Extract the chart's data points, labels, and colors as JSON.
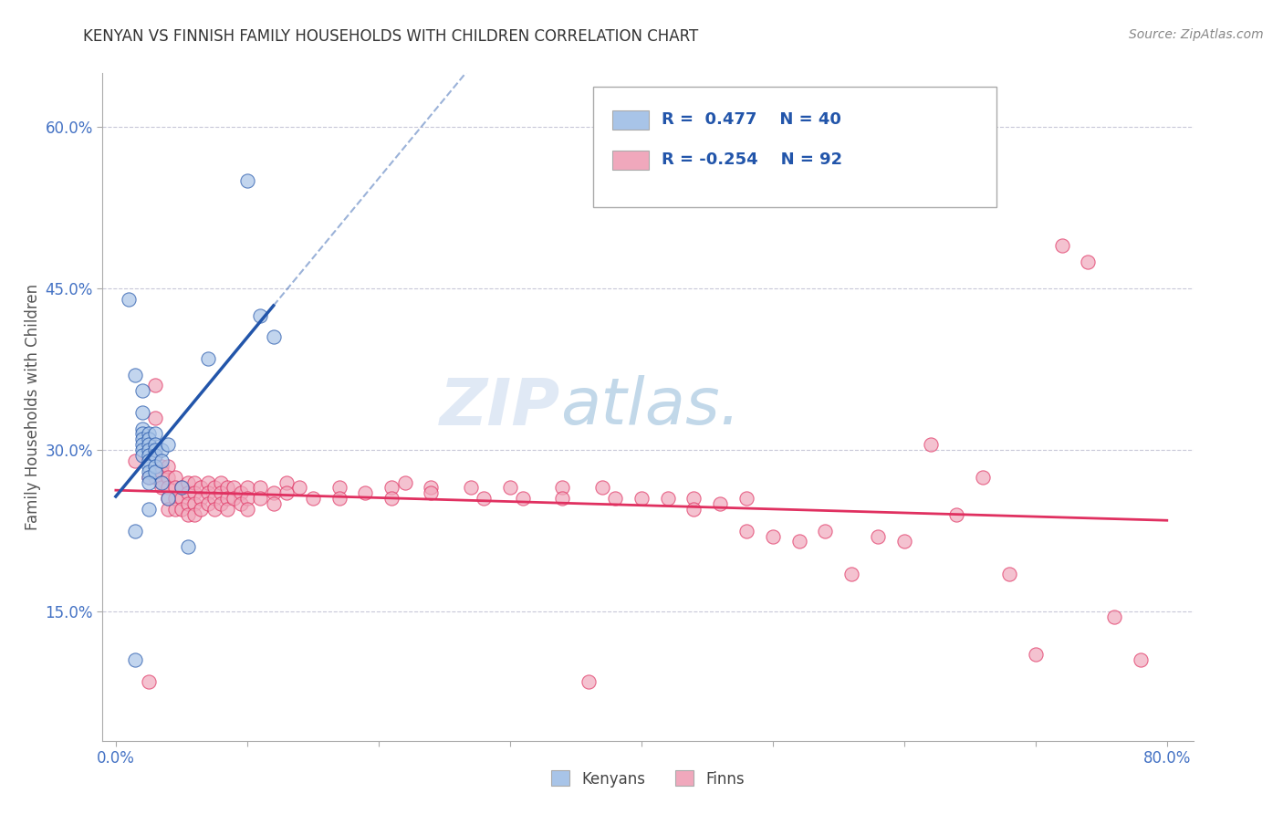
{
  "title": "KENYAN VS FINNISH FAMILY HOUSEHOLDS WITH CHILDREN CORRELATION CHART",
  "source": "Source: ZipAtlas.com",
  "xlabel": "",
  "ylabel": "Family Households with Children",
  "xlim": [
    -0.01,
    0.82
  ],
  "ylim": [
    0.03,
    0.65
  ],
  "yticks": [
    0.15,
    0.3,
    0.45,
    0.6
  ],
  "ytick_labels": [
    "15.0%",
    "30.0%",
    "45.0%",
    "60.0%"
  ],
  "xticks": [
    0.0,
    0.1,
    0.2,
    0.3,
    0.4,
    0.5,
    0.6,
    0.7,
    0.8
  ],
  "xtick_labels": [
    "0.0%",
    "",
    "",
    "",
    "",
    "",
    "",
    "",
    "80.0%"
  ],
  "kenyan_color": "#a8c4e8",
  "finn_color": "#f0a8bc",
  "kenyan_line_color": "#2255aa",
  "finn_line_color": "#e03060",
  "watermark_color": "#d0e0f0",
  "kenyan_points": [
    [
      0.01,
      0.44
    ],
    [
      0.015,
      0.37
    ],
    [
      0.02,
      0.355
    ],
    [
      0.02,
      0.335
    ],
    [
      0.02,
      0.32
    ],
    [
      0.02,
      0.315
    ],
    [
      0.02,
      0.31
    ],
    [
      0.02,
      0.305
    ],
    [
      0.02,
      0.3
    ],
    [
      0.02,
      0.295
    ],
    [
      0.025,
      0.315
    ],
    [
      0.025,
      0.31
    ],
    [
      0.025,
      0.305
    ],
    [
      0.025,
      0.3
    ],
    [
      0.025,
      0.295
    ],
    [
      0.025,
      0.29
    ],
    [
      0.025,
      0.285
    ],
    [
      0.025,
      0.28
    ],
    [
      0.025,
      0.275
    ],
    [
      0.03,
      0.315
    ],
    [
      0.03,
      0.305
    ],
    [
      0.03,
      0.3
    ],
    [
      0.03,
      0.295
    ],
    [
      0.03,
      0.285
    ],
    [
      0.03,
      0.28
    ],
    [
      0.035,
      0.3
    ],
    [
      0.035,
      0.29
    ],
    [
      0.035,
      0.27
    ],
    [
      0.04,
      0.305
    ],
    [
      0.04,
      0.255
    ],
    [
      0.05,
      0.265
    ],
    [
      0.055,
      0.21
    ],
    [
      0.07,
      0.385
    ],
    [
      0.1,
      0.55
    ],
    [
      0.11,
      0.425
    ],
    [
      0.12,
      0.405
    ],
    [
      0.015,
      0.225
    ],
    [
      0.015,
      0.105
    ],
    [
      0.025,
      0.245
    ],
    [
      0.025,
      0.27
    ]
  ],
  "finn_points": [
    [
      0.015,
      0.29
    ],
    [
      0.025,
      0.275
    ],
    [
      0.03,
      0.36
    ],
    [
      0.03,
      0.33
    ],
    [
      0.03,
      0.295
    ],
    [
      0.03,
      0.275
    ],
    [
      0.035,
      0.285
    ],
    [
      0.035,
      0.28
    ],
    [
      0.035,
      0.27
    ],
    [
      0.035,
      0.265
    ],
    [
      0.04,
      0.285
    ],
    [
      0.04,
      0.275
    ],
    [
      0.04,
      0.265
    ],
    [
      0.04,
      0.255
    ],
    [
      0.04,
      0.245
    ],
    [
      0.045,
      0.275
    ],
    [
      0.045,
      0.265
    ],
    [
      0.045,
      0.255
    ],
    [
      0.045,
      0.245
    ],
    [
      0.05,
      0.265
    ],
    [
      0.05,
      0.255
    ],
    [
      0.05,
      0.245
    ],
    [
      0.055,
      0.27
    ],
    [
      0.055,
      0.26
    ],
    [
      0.055,
      0.25
    ],
    [
      0.055,
      0.24
    ],
    [
      0.06,
      0.27
    ],
    [
      0.06,
      0.26
    ],
    [
      0.06,
      0.25
    ],
    [
      0.06,
      0.24
    ],
    [
      0.065,
      0.265
    ],
    [
      0.065,
      0.255
    ],
    [
      0.065,
      0.245
    ],
    [
      0.07,
      0.27
    ],
    [
      0.07,
      0.26
    ],
    [
      0.07,
      0.25
    ],
    [
      0.075,
      0.265
    ],
    [
      0.075,
      0.255
    ],
    [
      0.075,
      0.245
    ],
    [
      0.08,
      0.27
    ],
    [
      0.08,
      0.26
    ],
    [
      0.08,
      0.25
    ],
    [
      0.085,
      0.265
    ],
    [
      0.085,
      0.255
    ],
    [
      0.085,
      0.245
    ],
    [
      0.09,
      0.265
    ],
    [
      0.09,
      0.255
    ],
    [
      0.095,
      0.26
    ],
    [
      0.095,
      0.25
    ],
    [
      0.1,
      0.265
    ],
    [
      0.1,
      0.255
    ],
    [
      0.1,
      0.245
    ],
    [
      0.11,
      0.265
    ],
    [
      0.11,
      0.255
    ],
    [
      0.12,
      0.26
    ],
    [
      0.12,
      0.25
    ],
    [
      0.13,
      0.27
    ],
    [
      0.13,
      0.26
    ],
    [
      0.14,
      0.265
    ],
    [
      0.15,
      0.255
    ],
    [
      0.17,
      0.265
    ],
    [
      0.17,
      0.255
    ],
    [
      0.19,
      0.26
    ],
    [
      0.21,
      0.265
    ],
    [
      0.21,
      0.255
    ],
    [
      0.22,
      0.27
    ],
    [
      0.24,
      0.265
    ],
    [
      0.24,
      0.26
    ],
    [
      0.27,
      0.265
    ],
    [
      0.28,
      0.255
    ],
    [
      0.3,
      0.265
    ],
    [
      0.31,
      0.255
    ],
    [
      0.34,
      0.265
    ],
    [
      0.34,
      0.255
    ],
    [
      0.37,
      0.265
    ],
    [
      0.38,
      0.255
    ],
    [
      0.4,
      0.255
    ],
    [
      0.42,
      0.255
    ],
    [
      0.44,
      0.255
    ],
    [
      0.44,
      0.245
    ],
    [
      0.46,
      0.25
    ],
    [
      0.48,
      0.255
    ],
    [
      0.48,
      0.225
    ],
    [
      0.5,
      0.22
    ],
    [
      0.52,
      0.215
    ],
    [
      0.54,
      0.225
    ],
    [
      0.56,
      0.185
    ],
    [
      0.58,
      0.22
    ],
    [
      0.6,
      0.215
    ],
    [
      0.62,
      0.305
    ],
    [
      0.64,
      0.24
    ],
    [
      0.66,
      0.275
    ],
    [
      0.68,
      0.185
    ],
    [
      0.7,
      0.11
    ],
    [
      0.72,
      0.49
    ],
    [
      0.74,
      0.475
    ],
    [
      0.76,
      0.145
    ],
    [
      0.78,
      0.105
    ],
    [
      0.025,
      0.085
    ],
    [
      0.36,
      0.085
    ]
  ]
}
